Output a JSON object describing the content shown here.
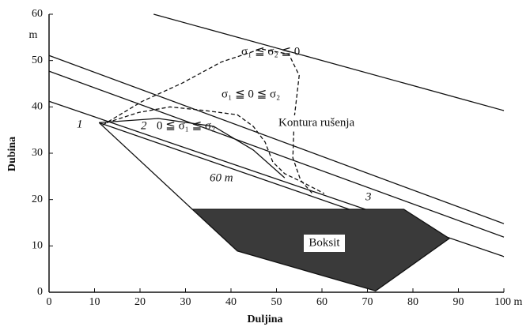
{
  "chart_data": {
    "type": "line",
    "xlabel": "Duljina",
    "ylabel": "Dubina",
    "yunit": "m",
    "xlim": [
      0,
      100
    ],
    "ylim": [
      0,
      60
    ],
    "xticks": [
      0,
      10,
      20,
      30,
      40,
      50,
      60,
      70,
      80,
      90,
      {
        "value": 100,
        "label": "100 m"
      }
    ],
    "yticks": [
      0,
      10,
      20,
      30,
      40,
      50,
      60
    ],
    "annotations": [
      "σ₁ ≦ σ₂ ≦ 0",
      "σ₁ ≦ 0 ≦ σ₂",
      "0 ≦ σ₁ ≦ σ₂",
      "Kontura rušenja",
      "60 m",
      "Boksit",
      "1",
      "2",
      "3"
    ],
    "color": "#111",
    "series": [
      {
        "style": "solid",
        "x": [
          23,
          100
        ],
        "values": [
          60,
          39.2
        ]
      },
      {
        "style": "solid",
        "x": [
          0,
          100
        ],
        "values": [
          51.1,
          14.8
        ]
      },
      {
        "style": "solid",
        "x": [
          0,
          100
        ],
        "values": [
          47.7,
          11.9
        ]
      },
      {
        "style": "solid",
        "x": [
          0,
          100
        ],
        "values": [
          41.2,
          7.7
        ]
      },
      {
        "style": "fill",
        "x": [
          31.5,
          41.4,
          71.8,
          88,
          78
        ],
        "values": [
          17.9,
          8.9,
          0.3,
          11.6,
          17.9
        ]
      },
      {
        "style": "solid",
        "x": [
          66,
          11,
          31.5
        ],
        "values": [
          17.9,
          36.6,
          17.9
        ]
      },
      {
        "style": "dashed",
        "x": [
          11.8,
          20.5,
          29.2,
          37.9,
          46.6,
          52.7,
          55,
          53.9,
          53.6,
          55.3,
          57.9
        ],
        "values": [
          36.1,
          41.2,
          45.1,
          49.7,
          52.5,
          51.4,
          46.8,
          37.5,
          29,
          24.2,
          21.3
        ]
      },
      {
        "style": "dashed",
        "x": [
          12.7,
          19.7,
          26.6,
          34.4,
          41.4,
          44.9,
          47.5,
          49.2,
          51.8,
          56.2,
          60.5
        ],
        "values": [
          36.6,
          38.8,
          40,
          39.2,
          38.3,
          35.8,
          32.4,
          28.1,
          25.6,
          23.5,
          21.3
        ]
      },
      {
        "style": "solid",
        "x": [
          11,
          24,
          36.2,
          44.9,
          51.8
        ],
        "values": [
          36.6,
          37.5,
          35.8,
          30.7,
          24.7
        ]
      }
    ]
  }
}
